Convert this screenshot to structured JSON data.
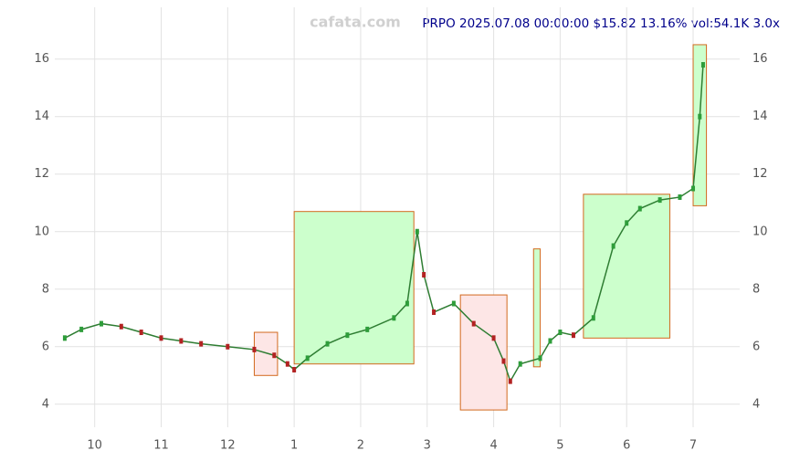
{
  "chart_data": {
    "type": "line",
    "title": "PRPO 2025.07.08 00:00:00 $15.82 13.16% vol:54.1K 3.0x",
    "watermark": "cafata.com",
    "xlim": [
      -0.6,
      9.7
    ],
    "xticks": [
      {
        "value": 0,
        "label": "10"
      },
      {
        "value": 1,
        "label": "11"
      },
      {
        "value": 2,
        "label": "12"
      },
      {
        "value": 3,
        "label": "1"
      },
      {
        "value": 4,
        "label": "2"
      },
      {
        "value": 5,
        "label": "3"
      },
      {
        "value": 6,
        "label": "4"
      },
      {
        "value": 7,
        "label": "5"
      },
      {
        "value": 8,
        "label": "6"
      },
      {
        "value": 9,
        "label": "7"
      }
    ],
    "ylim": [
      3.2,
      17.8
    ],
    "yticks": [
      4,
      6,
      8,
      10,
      12,
      14,
      16
    ],
    "grid": true,
    "boxes": [
      {
        "x": [
          3.0,
          4.8
        ],
        "y": [
          5.4,
          10.7
        ],
        "color": "#ccffcc"
      },
      {
        "x": [
          2.4,
          2.75
        ],
        "y": [
          5.0,
          6.5
        ],
        "color": "#fde6e6"
      },
      {
        "x": [
          5.5,
          6.2
        ],
        "y": [
          3.8,
          7.8
        ],
        "color": "#fde6e6"
      },
      {
        "x": [
          6.6,
          6.7
        ],
        "y": [
          5.3,
          9.4
        ],
        "color": "#ccffcc"
      },
      {
        "x": [
          7.35,
          8.65
        ],
        "y": [
          6.3,
          11.3
        ],
        "color": "#ccffcc"
      },
      {
        "x": [
          9.0,
          9.2
        ],
        "y": [
          10.9,
          16.5
        ],
        "color": "#ccffcc"
      }
    ],
    "series": [
      {
        "name": "PRPO",
        "color": "#2e7d32",
        "x": [
          -0.45,
          -0.2,
          0.1,
          0.4,
          0.7,
          1.0,
          1.3,
          1.6,
          2.0,
          2.4,
          2.7,
          2.9,
          3.0,
          3.2,
          3.5,
          3.8,
          4.1,
          4.5,
          4.7,
          4.85,
          4.95,
          5.1,
          5.4,
          5.7,
          6.0,
          6.15,
          6.25,
          6.4,
          6.7,
          6.85,
          7.0,
          7.2,
          7.5,
          7.8,
          8.0,
          8.2,
          8.5,
          8.8,
          9.0,
          9.1,
          9.15
        ],
        "values": [
          6.3,
          6.6,
          6.8,
          6.7,
          6.5,
          6.3,
          6.2,
          6.1,
          6.0,
          5.9,
          5.7,
          5.4,
          5.2,
          5.6,
          6.1,
          6.4,
          6.6,
          7.0,
          7.5,
          10.0,
          8.5,
          7.2,
          7.5,
          6.8,
          6.3,
          5.5,
          4.8,
          5.4,
          5.6,
          6.2,
          6.5,
          6.4,
          7.0,
          9.5,
          10.3,
          10.8,
          11.1,
          11.2,
          11.5,
          14.0,
          15.8
        ]
      }
    ]
  }
}
